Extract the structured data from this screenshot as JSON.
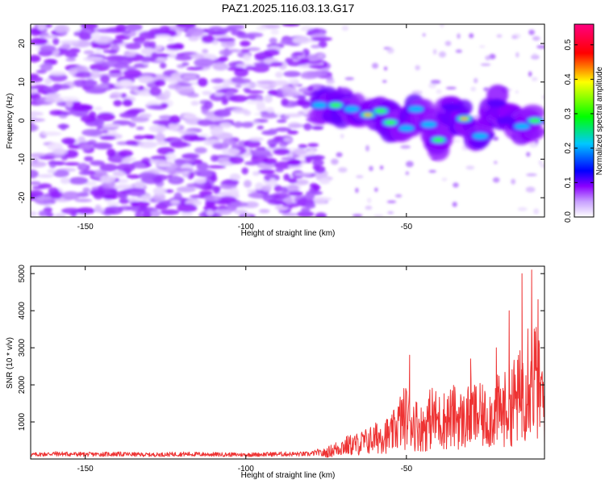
{
  "figure": {
    "title": "PAZ1.2025.116.03.13.G17"
  },
  "chart_data": [
    {
      "type": "heatmap",
      "xlabel": "Height of straight line (km)",
      "ylabel": "Frequency (Hz)",
      "xlim": [
        -167,
        -7
      ],
      "ylim": [
        -25,
        25
      ],
      "xticks": [
        -150,
        -100,
        -50
      ],
      "yticks": [
        -20,
        -10,
        0,
        10,
        20
      ],
      "colorbar": {
        "label": "Normalized spectral amplitude",
        "range": [
          0,
          0.56
        ],
        "ticks": [
          0.0,
          0.1,
          0.2,
          0.3,
          0.4,
          0.5
        ],
        "colormap": [
          "#ffffff",
          "#8a00ff",
          "#0000ff",
          "#00c8ff",
          "#00ff00",
          "#ffff00",
          "#ff0000",
          "#ff0080"
        ]
      },
      "noise_region": {
        "x": [
          -167,
          -77
        ],
        "y": [
          -25,
          25
        ],
        "typical_amplitude": 0.06
      },
      "signal_track": [
        {
          "x": -77,
          "y": 4.0,
          "amp": 0.22
        },
        {
          "x": -72,
          "y": 4.0,
          "amp": 0.3
        },
        {
          "x": -67,
          "y": 3.0,
          "amp": 0.26
        },
        {
          "x": -62,
          "y": 1.5,
          "amp": 0.45
        },
        {
          "x": -58,
          "y": 2.5,
          "amp": 0.33
        },
        {
          "x": -55,
          "y": -0.5,
          "amp": 0.33
        },
        {
          "x": -50,
          "y": -2.0,
          "amp": 0.22
        },
        {
          "x": -47,
          "y": 3.0,
          "amp": 0.26
        },
        {
          "x": -43,
          "y": -1.0,
          "amp": 0.2
        },
        {
          "x": -40,
          "y": -5.0,
          "amp": 0.3
        },
        {
          "x": -36,
          "y": 3.5,
          "amp": 0.18
        },
        {
          "x": -32,
          "y": 0.5,
          "amp": 0.4
        },
        {
          "x": -27,
          "y": -4.0,
          "amp": 0.24
        },
        {
          "x": -22,
          "y": 4.5,
          "amp": 0.14
        },
        {
          "x": -19,
          "y": 0.0,
          "amp": 0.18
        },
        {
          "x": -14,
          "y": -1.5,
          "amp": 0.24
        },
        {
          "x": -10,
          "y": 0.0,
          "amp": 0.34
        }
      ]
    },
    {
      "type": "line",
      "xlabel": "Height of straight line (km)",
      "ylabel": "SNR (10 * v/v)",
      "xlim": [
        -167,
        -7
      ],
      "ylim": [
        0,
        5200
      ],
      "xticks": [
        -150,
        -100,
        -50
      ],
      "yticks": [
        1000,
        2000,
        3000,
        4000,
        5000
      ],
      "series": [
        {
          "color": "#ee3333",
          "x": [
            -167,
            -160,
            -150,
            -140,
            -130,
            -120,
            -110,
            -100,
            -90,
            -80,
            -75,
            -70,
            -65,
            -60,
            -57,
            -55,
            -52,
            -50,
            -47,
            -45,
            -42,
            -40,
            -37,
            -35,
            -32,
            -30,
            -27,
            -25,
            -22,
            -20,
            -17,
            -15,
            -13,
            -12,
            -11,
            -10,
            -9,
            -8,
            -7
          ],
          "y": [
            120,
            150,
            130,
            140,
            120,
            140,
            130,
            120,
            140,
            140,
            250,
            500,
            600,
            800,
            1000,
            900,
            1500,
            1700,
            1400,
            1200,
            1700,
            1500,
            1600,
            1700,
            1500,
            1800,
            1700,
            1600,
            1900,
            1900,
            2300,
            2400,
            3000,
            3700,
            3500,
            3300,
            2800,
            2500,
            2200
          ],
          "peaks": [
            {
              "x": -98,
              "y": 170
            },
            {
              "x": -64,
              "y": 700
            },
            {
              "x": -49,
              "y": 2800
            },
            {
              "x": -30,
              "y": 2700
            },
            {
              "x": -22,
              "y": 3000
            },
            {
              "x": -18,
              "y": 4000
            },
            {
              "x": -14,
              "y": 5000
            },
            {
              "x": -11,
              "y": 5100
            },
            {
              "x": -9,
              "y": 4300
            }
          ]
        }
      ]
    }
  ]
}
